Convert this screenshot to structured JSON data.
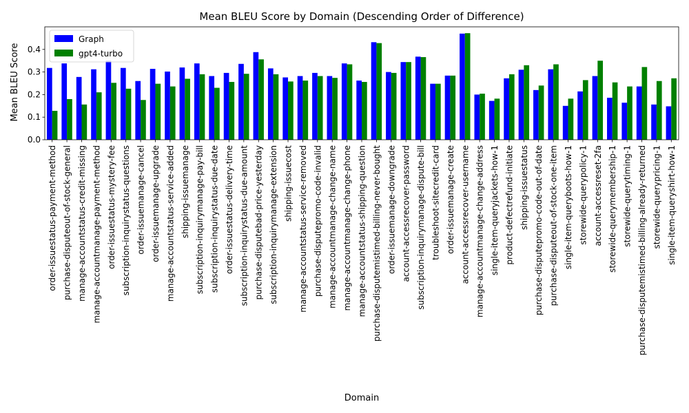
{
  "chart_data": {
    "type": "bar",
    "title": "Mean BLEU Score by Domain (Descending Order of Difference)",
    "xlabel": "Domain",
    "ylabel": "Mean BLEU Score",
    "ylim": [
      0,
      0.5
    ],
    "yticks": [
      0.0,
      0.1,
      0.2,
      0.3,
      0.4
    ],
    "ytick_labels": [
      "0.0",
      "0.1",
      "0.2",
      "0.3",
      "0.4"
    ],
    "legend_position": "top-left",
    "grid": false,
    "categories": [
      "order-issuestatus-payment-method",
      "purchase-disputeout-of-stock-general",
      "manage-accountstatus-credit-missing",
      "manage-accountmanage-payment-method",
      "order-issuestatus-mystery-fee",
      "subscription-inquirystatus-questions",
      "order-issuemanage-cancel",
      "order-issuemanage-upgrade",
      "manage-accountstatus-service-added",
      "shipping-issuemanage",
      "subscription-inquirymanage-pay-bill",
      "subscription-inquirystatus-due-date",
      "order-issuestatus-delivery-time",
      "subscription-inquirystatus-due-amount",
      "purchase-disputebad-price-yesterday",
      "subscription-inquirymanage-extension",
      "shipping-issuecost",
      "manage-accountstatus-service-removed",
      "purchase-disputepromo-code-invalid",
      "manage-accountmanage-change-name",
      "manage-accountmanage-change-phone",
      "manage-accountstatus-shipping-question",
      "purchase-disputemistimed-billing-never-bought",
      "order-issuemanage-downgrade",
      "account-accessrecover-password",
      "subscription-inquirymanage-dispute-bill",
      "troubleshoot-sitecredit-card",
      "order-issuemanage-create",
      "account-accessrecover-username",
      "manage-accountmanage-change-address",
      "single-item-queryjackets-how-1",
      "product-defectrefund-initiate",
      "shipping-issuestatus",
      "purchase-disputepromo-code-out-of-date",
      "purchase-disputeout-of-stock-one-item",
      "single-item-queryboots-how-1",
      "storewide-querypolicy-1",
      "account-accessreset-2fa",
      "storewide-querymembership-1",
      "storewide-querytiming-1",
      "purchase-disputemistimed-billing-already-returned",
      "storewide-querypricing-1",
      "single-item-queryshirt-how-1"
    ],
    "series": [
      {
        "name": "Graph",
        "color": "#0000ff",
        "values": [
          0.318,
          0.338,
          0.278,
          0.312,
          0.35,
          0.318,
          0.26,
          0.314,
          0.302,
          0.32,
          0.338,
          0.282,
          0.296,
          0.336,
          0.388,
          0.316,
          0.276,
          0.282,
          0.296,
          0.282,
          0.338,
          0.262,
          0.432,
          0.3,
          0.344,
          0.368,
          0.248,
          0.284,
          0.47,
          0.2,
          0.172,
          0.272,
          0.31,
          0.22,
          0.312,
          0.15,
          0.214,
          0.282,
          0.186,
          0.164,
          0.236,
          0.156,
          0.148
        ]
      },
      {
        "name": "gpt4-turbo",
        "color": "#008000",
        "values": [
          0.128,
          0.18,
          0.156,
          0.21,
          0.252,
          0.226,
          0.176,
          0.248,
          0.236,
          0.27,
          0.29,
          0.23,
          0.256,
          0.292,
          0.356,
          0.29,
          0.258,
          0.262,
          0.282,
          0.274,
          0.334,
          0.256,
          0.428,
          0.296,
          0.344,
          0.366,
          0.248,
          0.284,
          0.472,
          0.204,
          0.182,
          0.29,
          0.33,
          0.24,
          0.334,
          0.182,
          0.264,
          0.35,
          0.254,
          0.236,
          0.322,
          0.26,
          0.272
        ]
      }
    ]
  }
}
